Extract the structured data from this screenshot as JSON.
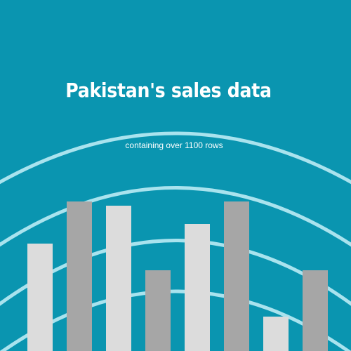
{
  "poster": {
    "title": "Pakistan's sales data",
    "subtitle": "containing over 1100 rows"
  },
  "colors": {
    "background": "#0a95b0",
    "arc": "#a9e3ee",
    "bar_light": "#dcdcdc",
    "bar_dark": "#a6a6a6"
  },
  "decoration": {
    "bars": [
      {
        "shade": "light",
        "level": 0.53
      },
      {
        "shade": "dark",
        "level": 0.74
      },
      {
        "shade": "light",
        "level": 0.72
      },
      {
        "shade": "dark",
        "level": 0.4
      },
      {
        "shade": "light",
        "level": 0.63
      },
      {
        "shade": "dark",
        "level": 0.74
      },
      {
        "shade": "light",
        "level": 0.17
      },
      {
        "shade": "dark",
        "level": 0.4
      }
    ]
  }
}
